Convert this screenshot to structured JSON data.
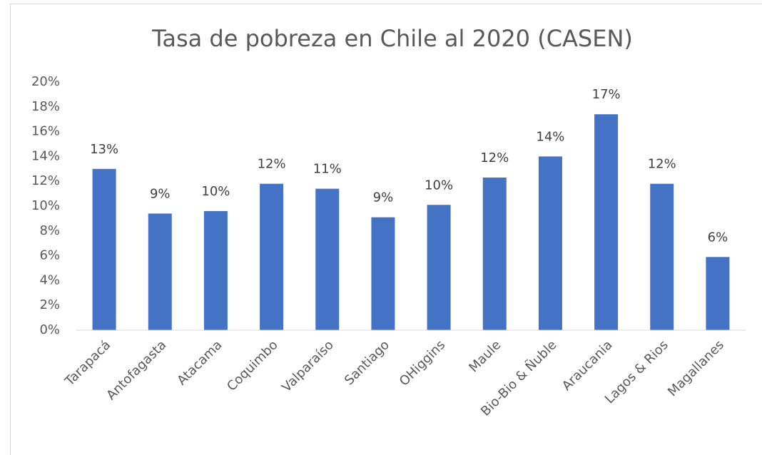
{
  "chart_data": {
    "type": "bar",
    "title": "Tasa de pobreza en Chile al 2020 (CASEN)",
    "categories": [
      "Tarapacá",
      "Antofagasta",
      "Atacama",
      "Coquimbo",
      "Valparaíso",
      "Santiago",
      "OHiggins",
      "Maule",
      "Bio-Bio & Ñuble",
      "Araucania",
      "Lagos & Rios",
      "Magallanes"
    ],
    "values": [
      13.0,
      9.4,
      9.6,
      11.8,
      11.4,
      9.1,
      10.1,
      12.3,
      14.0,
      17.4,
      11.8,
      5.9
    ],
    "value_labels": [
      "13%",
      "9%",
      "10%",
      "12%",
      "11%",
      "9%",
      "10%",
      "12%",
      "14%",
      "17%",
      "12%",
      "6%"
    ],
    "color": "#4472c4",
    "ylim": [
      0,
      20
    ],
    "yticks": [
      {
        "value": 0,
        "label": "0%"
      },
      {
        "value": 2,
        "label": "2%"
      },
      {
        "value": 4,
        "label": "4%"
      },
      {
        "value": 6,
        "label": "6%"
      },
      {
        "value": 8,
        "label": "8%"
      },
      {
        "value": 10,
        "label": "10%"
      },
      {
        "value": 12,
        "label": "12%"
      },
      {
        "value": 14,
        "label": "14%"
      },
      {
        "value": 16,
        "label": "16%"
      },
      {
        "value": 18,
        "label": "18%"
      },
      {
        "value": 20,
        "label": "20%"
      }
    ],
    "grid": false
  }
}
